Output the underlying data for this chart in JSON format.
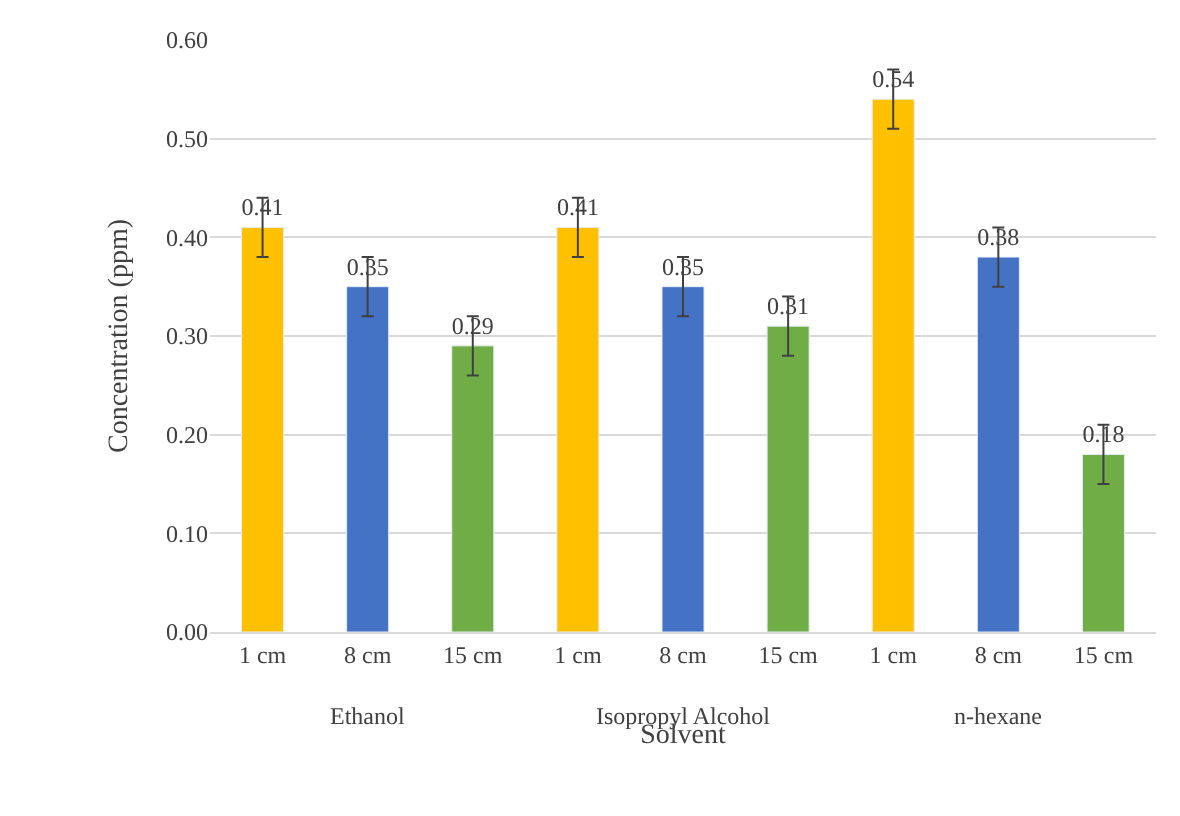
{
  "chart_data": {
    "type": "bar",
    "xlabel": "Solvent",
    "ylabel": "Concentration (ppm)",
    "categories": [
      "1 cm",
      "8 cm",
      "15 cm",
      "1 cm",
      "8 cm",
      "15 cm",
      "1 cm",
      "8 cm",
      "15 cm"
    ],
    "values": [
      0.41,
      0.35,
      0.29,
      0.41,
      0.35,
      0.31,
      0.54,
      0.38,
      0.18
    ],
    "colors": [
      "#ffc000",
      "#4472c4",
      "#70ad47",
      "#ffc000",
      "#4472c4",
      "#70ad47",
      "#ffc000",
      "#4472c4",
      "#70ad47"
    ],
    "errors": [
      0.03,
      0.03,
      0.03,
      0.03,
      0.03,
      0.03,
      0.03,
      0.03,
      0.03
    ],
    "annotations": [
      "Ethanol",
      "Isopropyl Alcohol",
      "n-hexane"
    ],
    "data_labels": true,
    "ylim": [
      0,
      0.6
    ],
    "yticks": [
      {
        "value": 0,
        "label": "0.00"
      },
      {
        "value": 0.1,
        "label": "0.10"
      },
      {
        "value": 0.2,
        "label": "0.20"
      },
      {
        "value": 0.3,
        "label": "0.30"
      },
      {
        "value": 0.4,
        "label": "0.40"
      },
      {
        "value": 0.5,
        "label": "0.50"
      },
      {
        "value": 0.6,
        "label": "0.60"
      }
    ],
    "grid": "y"
  }
}
